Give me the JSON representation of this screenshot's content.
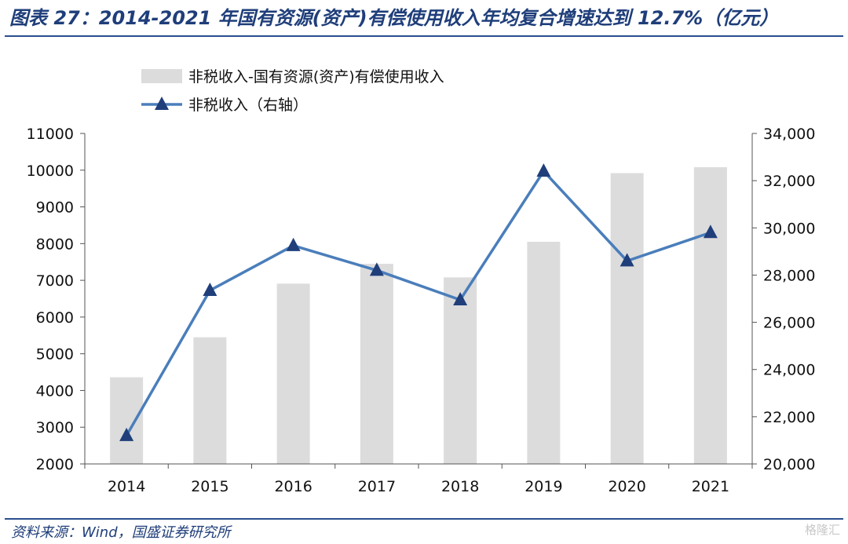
{
  "header": {
    "title": "图表 27：2014-2021 年国有资源(资产)有偿使用收入年均复合增速达到 12.7%（亿元）"
  },
  "footer": {
    "source": "资料来源：Wind，国盛证券研究所",
    "watermark": "格隆汇"
  },
  "colors": {
    "bar": "#dcdcdc",
    "line": "#4a7ebb",
    "marker": "#1f3e7a",
    "title": "#1f3e7a",
    "axis": "#555555"
  },
  "chart_data": {
    "type": "bar",
    "categories": [
      "2014",
      "2015",
      "2016",
      "2017",
      "2018",
      "2019",
      "2020",
      "2021"
    ],
    "series": [
      {
        "name": "非税收入-国有资源(资产)有偿使用收入",
        "type": "bar",
        "axis": "left",
        "values": [
          4360,
          5450,
          6910,
          7450,
          7080,
          8050,
          9920,
          10080
        ]
      },
      {
        "name": "非税收入（右轴）",
        "type": "line",
        "axis": "right",
        "marker": "triangle",
        "values": [
          21200,
          27350,
          29250,
          28200,
          26950,
          32400,
          28600,
          29800
        ]
      }
    ],
    "left_axis": {
      "ylim": [
        2000,
        11000
      ],
      "ticks": [
        "2000",
        "3000",
        "4000",
        "5000",
        "6000",
        "7000",
        "8000",
        "9000",
        "10000",
        "11000"
      ]
    },
    "right_axis": {
      "ylim": [
        20000,
        34000
      ],
      "ticks": [
        "20,000",
        "22,000",
        "24,000",
        "26,000",
        "28,000",
        "30,000",
        "32,000",
        "34,000"
      ]
    },
    "legend_position": "top-left",
    "grid": false
  }
}
